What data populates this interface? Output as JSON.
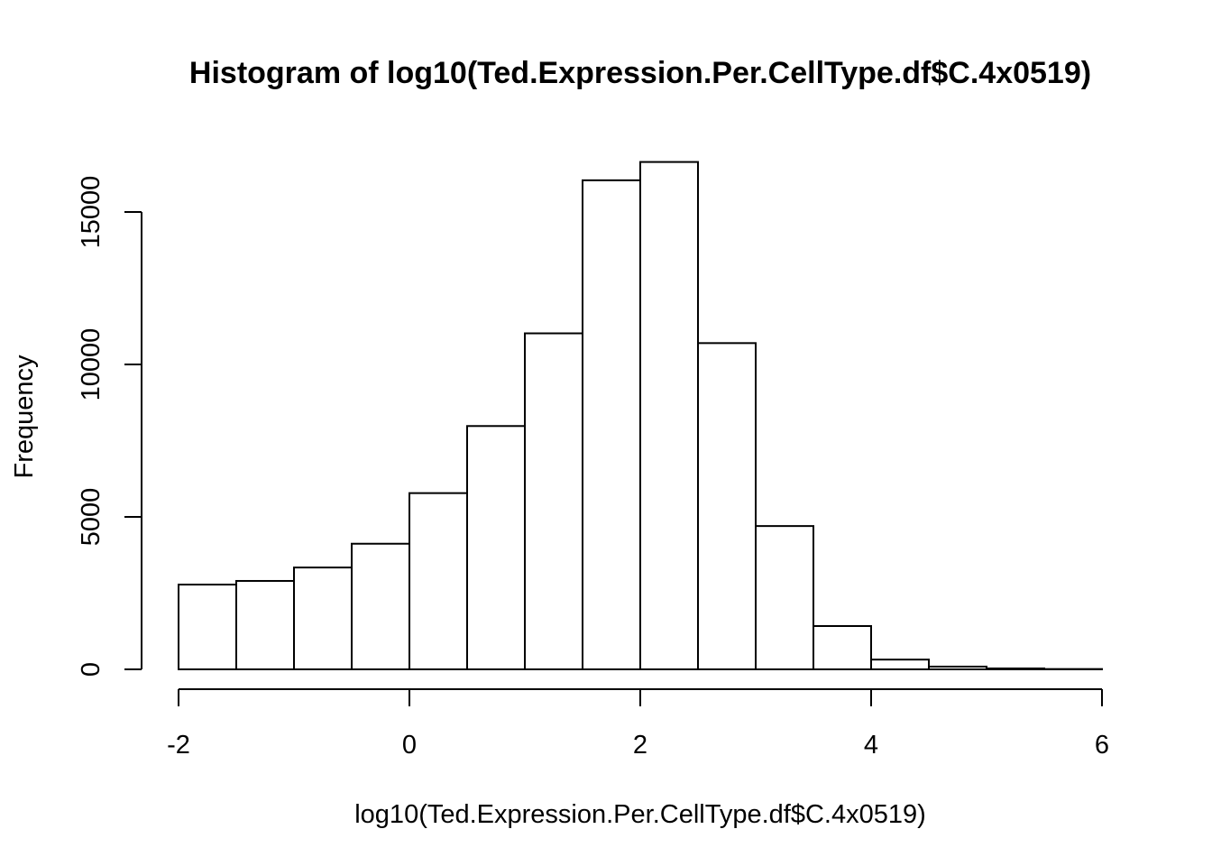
{
  "chart_data": {
    "type": "bar",
    "title": "Histogram of log10(Ted.Expression.Per.CellType.df$C.4x0519)",
    "xlabel": "log10(Ted.Expression.Per.CellType.df$C.4x0519)",
    "ylabel": "Frequency",
    "xlim": [
      -2,
      6
    ],
    "ylim": [
      0,
      16650
    ],
    "x_ticks": [
      -2,
      0,
      2,
      4,
      6
    ],
    "x_tick_labels": [
      "-2",
      "0",
      "2",
      "4",
      "6"
    ],
    "y_ticks": [
      0,
      5000,
      10000,
      15000
    ],
    "y_tick_labels": [
      "0",
      "5000",
      "10000",
      "15000"
    ],
    "bin_edges": [
      -2,
      -1.5,
      -1,
      -0.5,
      0,
      0.5,
      1,
      1.5,
      2,
      2.5,
      3,
      3.5,
      4,
      4.5,
      5,
      5.5,
      6
    ],
    "values": [
      2780,
      2900,
      3340,
      4120,
      5780,
      7980,
      11020,
      16040,
      16640,
      10700,
      4700,
      1420,
      320,
      90,
      30,
      10
    ],
    "grid": false,
    "fill": "#ffffff",
    "stroke": "#000000"
  }
}
